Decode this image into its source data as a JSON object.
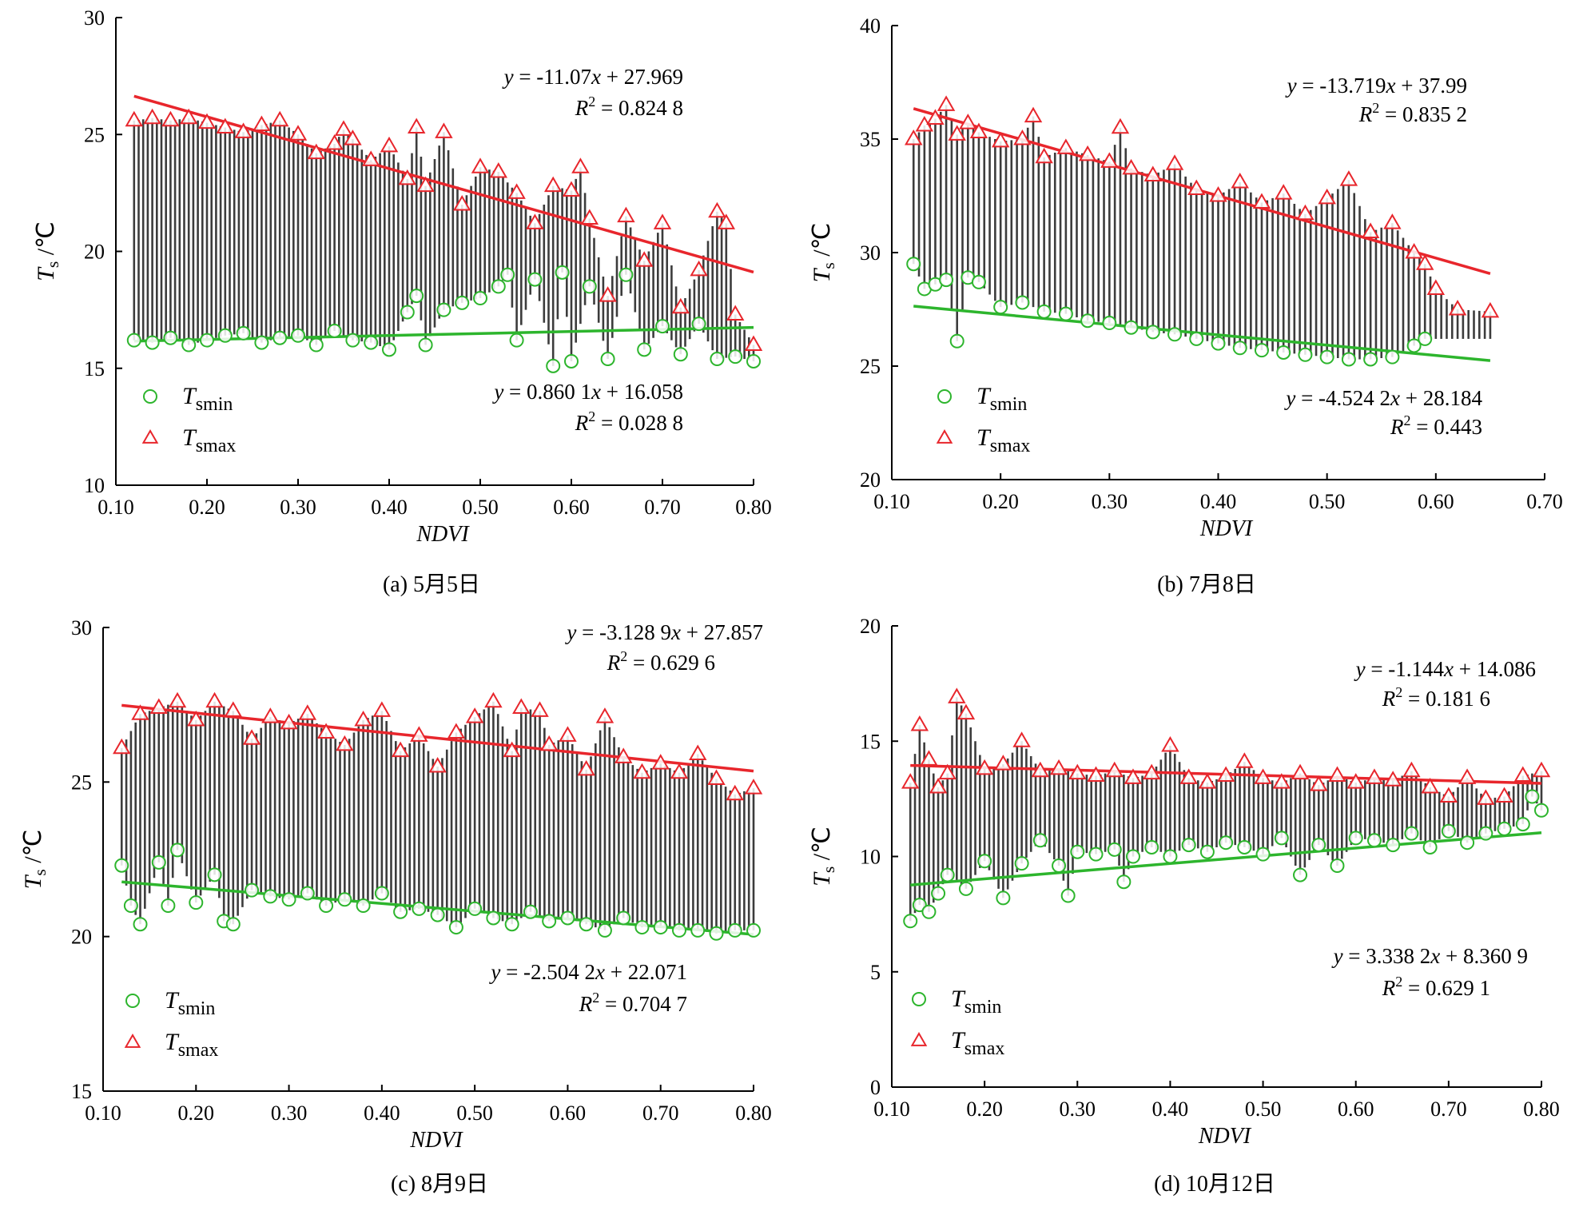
{
  "chart_data": [
    {
      "type": "scatter",
      "caption": "(a) 5月5日",
      "xlabel": "NDVI",
      "ylabel": "T_s /℃",
      "xlim": [
        0.1,
        0.8
      ],
      "ylim": [
        10,
        30
      ],
      "xticks": [
        "0.10",
        "0.20",
        "0.30",
        "0.40",
        "0.50",
        "0.60",
        "0.70",
        "0.80"
      ],
      "yticks": [
        "10",
        "15",
        "20",
        "25",
        "30"
      ],
      "legend": [
        "T_smin",
        "T_smax"
      ],
      "colors": {
        "min": "#2db52d",
        "max": "#e8262c",
        "band": "#1a1a1a"
      },
      "series": [
        {
          "name": "T_smin",
          "fit": {
            "slope": 0.8601,
            "intercept": 16.058,
            "x_range": [
              0.12,
              0.8
            ]
          },
          "equation": "y = 0.860 1x + 16.058",
          "r2": "R² = 0.028 8",
          "x": [
            0.12,
            0.14,
            0.16,
            0.18,
            0.2,
            0.22,
            0.24,
            0.26,
            0.28,
            0.3,
            0.32,
            0.34,
            0.36,
            0.38,
            0.4,
            0.42,
            0.43,
            0.44,
            0.46,
            0.48,
            0.5,
            0.52,
            0.53,
            0.54,
            0.56,
            0.58,
            0.59,
            0.6,
            0.62,
            0.64,
            0.66,
            0.68,
            0.7,
            0.72,
            0.74,
            0.76,
            0.78,
            0.8
          ],
          "y": [
            16.2,
            16.1,
            16.3,
            16.0,
            16.2,
            16.4,
            16.5,
            16.1,
            16.3,
            16.4,
            16.0,
            16.6,
            16.2,
            16.1,
            15.8,
            17.4,
            18.1,
            16.0,
            17.5,
            17.8,
            18.0,
            18.5,
            19.0,
            16.2,
            18.8,
            15.1,
            19.1,
            15.3,
            18.5,
            15.4,
            19.0,
            15.8,
            16.8,
            15.6,
            16.9,
            15.4,
            15.5,
            15.3
          ]
        },
        {
          "name": "T_smax",
          "fit": {
            "slope": -11.07,
            "intercept": 27.969,
            "x_range": [
              0.12,
              0.8
            ]
          },
          "equation": "y = -11.07x + 27.969",
          "r2": "R² = 0.824 8",
          "x": [
            0.12,
            0.14,
            0.16,
            0.18,
            0.2,
            0.22,
            0.24,
            0.26,
            0.28,
            0.3,
            0.32,
            0.34,
            0.35,
            0.36,
            0.38,
            0.4,
            0.42,
            0.43,
            0.44,
            0.46,
            0.48,
            0.5,
            0.52,
            0.54,
            0.56,
            0.58,
            0.6,
            0.61,
            0.62,
            0.64,
            0.66,
            0.68,
            0.7,
            0.72,
            0.74,
            0.76,
            0.77,
            0.78,
            0.8
          ],
          "y": [
            25.6,
            25.7,
            25.6,
            25.7,
            25.5,
            25.3,
            25.1,
            25.4,
            25.6,
            25.0,
            24.2,
            24.6,
            25.2,
            24.8,
            23.9,
            24.5,
            23.1,
            25.3,
            22.8,
            25.1,
            22.0,
            23.6,
            23.4,
            22.5,
            21.2,
            22.8,
            22.6,
            23.6,
            21.4,
            18.1,
            21.5,
            19.6,
            21.2,
            17.6,
            19.2,
            21.7,
            21.2,
            17.3,
            16.0
          ]
        }
      ]
    },
    {
      "type": "scatter",
      "caption": "(b) 7月8日",
      "xlabel": "NDVI",
      "ylabel": "T_s /℃",
      "xlim": [
        0.1,
        0.7
      ],
      "ylim": [
        20,
        40
      ],
      "xticks": [
        "0.10",
        "0.20",
        "0.30",
        "0.40",
        "0.50",
        "0.60",
        "0.70"
      ],
      "yticks": [
        "20",
        "25",
        "30",
        "35",
        "40"
      ],
      "legend": [
        "T_smin",
        "T_smax"
      ],
      "colors": {
        "min": "#2db52d",
        "max": "#e8262c",
        "band": "#1a1a1a"
      },
      "series": [
        {
          "name": "T_smin",
          "fit": {
            "slope": -4.5242,
            "intercept": 28.184,
            "x_range": [
              0.12,
              0.65
            ]
          },
          "equation": "y = -4.524 2x + 28.184",
          "r2": "R² = 0.443",
          "x": [
            0.12,
            0.13,
            0.14,
            0.15,
            0.16,
            0.17,
            0.18,
            0.2,
            0.22,
            0.24,
            0.26,
            0.28,
            0.3,
            0.32,
            0.34,
            0.36,
            0.38,
            0.4,
            0.42,
            0.44,
            0.46,
            0.48,
            0.5,
            0.52,
            0.54,
            0.56,
            0.58,
            0.59
          ],
          "y": [
            29.5,
            28.4,
            28.6,
            28.8,
            26.1,
            28.9,
            28.7,
            27.6,
            27.8,
            27.4,
            27.3,
            27.0,
            26.9,
            26.7,
            26.5,
            26.4,
            26.2,
            26.0,
            25.8,
            25.7,
            25.6,
            25.5,
            25.4,
            25.3,
            25.3,
            25.4,
            25.9,
            26.2
          ]
        },
        {
          "name": "T_smax",
          "fit": {
            "slope": -13.719,
            "intercept": 37.99,
            "x_range": [
              0.12,
              0.65
            ]
          },
          "equation": "y = -13.719x + 37.99",
          "r2": "R² = 0.835 2",
          "x": [
            0.12,
            0.13,
            0.14,
            0.15,
            0.16,
            0.17,
            0.18,
            0.2,
            0.22,
            0.23,
            0.24,
            0.26,
            0.28,
            0.3,
            0.31,
            0.32,
            0.34,
            0.36,
            0.38,
            0.4,
            0.42,
            0.44,
            0.46,
            0.48,
            0.5,
            0.52,
            0.54,
            0.56,
            0.58,
            0.59,
            0.6,
            0.62,
            0.65
          ],
          "y": [
            35.0,
            35.6,
            35.9,
            36.5,
            35.2,
            35.7,
            35.3,
            34.9,
            35.0,
            36.0,
            34.2,
            34.6,
            34.3,
            34.0,
            35.5,
            33.7,
            33.4,
            33.9,
            32.8,
            32.5,
            33.1,
            32.2,
            32.6,
            31.7,
            32.4,
            33.2,
            30.9,
            31.3,
            30.0,
            29.5,
            28.4,
            27.5,
            27.4
          ]
        }
      ]
    },
    {
      "type": "scatter",
      "caption": "(c) 8月9日",
      "xlabel": "NDVI",
      "ylabel": "T_s /℃",
      "xlim": [
        0.1,
        0.8
      ],
      "ylim": [
        15,
        30
      ],
      "xticks": [
        "0.10",
        "0.20",
        "0.30",
        "0.40",
        "0.50",
        "0.60",
        "0.70",
        "0.80"
      ],
      "yticks": [
        "15",
        "20",
        "25",
        "30"
      ],
      "legend": [
        "T_smin",
        "T_smax"
      ],
      "colors": {
        "min": "#2db52d",
        "max": "#e8262c",
        "band": "#1a1a1a"
      },
      "series": [
        {
          "name": "T_smin",
          "fit": {
            "slope": -2.5042,
            "intercept": 22.071,
            "x_range": [
              0.12,
              0.8
            ]
          },
          "equation": "y = -2.504 2x + 22.071",
          "r2": "R² = 0.704 7",
          "x": [
            0.12,
            0.13,
            0.14,
            0.16,
            0.17,
            0.18,
            0.2,
            0.22,
            0.23,
            0.24,
            0.26,
            0.28,
            0.3,
            0.32,
            0.34,
            0.36,
            0.38,
            0.4,
            0.42,
            0.44,
            0.46,
            0.48,
            0.5,
            0.52,
            0.54,
            0.56,
            0.58,
            0.6,
            0.62,
            0.64,
            0.66,
            0.68,
            0.7,
            0.72,
            0.74,
            0.76,
            0.78,
            0.8
          ],
          "y": [
            22.3,
            21.0,
            20.4,
            22.4,
            21.0,
            22.8,
            21.1,
            22.0,
            20.5,
            20.4,
            21.5,
            21.3,
            21.2,
            21.4,
            21.0,
            21.2,
            21.0,
            21.4,
            20.8,
            20.9,
            20.7,
            20.3,
            20.9,
            20.6,
            20.4,
            20.8,
            20.5,
            20.6,
            20.4,
            20.2,
            20.6,
            20.3,
            20.3,
            20.2,
            20.2,
            20.1,
            20.2,
            20.2
          ]
        },
        {
          "name": "T_smax",
          "fit": {
            "slope": -3.1289,
            "intercept": 27.857,
            "x_range": [
              0.12,
              0.8
            ]
          },
          "equation": "y = -3.128 9x + 27.857",
          "r2": "R² = 0.629 6",
          "x": [
            0.12,
            0.14,
            0.16,
            0.18,
            0.2,
            0.22,
            0.24,
            0.26,
            0.28,
            0.3,
            0.32,
            0.34,
            0.36,
            0.38,
            0.4,
            0.42,
            0.44,
            0.46,
            0.48,
            0.5,
            0.52,
            0.54,
            0.55,
            0.57,
            0.58,
            0.6,
            0.62,
            0.64,
            0.66,
            0.68,
            0.7,
            0.72,
            0.74,
            0.76,
            0.78,
            0.8
          ],
          "y": [
            26.1,
            27.2,
            27.4,
            27.6,
            27.0,
            27.6,
            27.3,
            26.4,
            27.1,
            26.9,
            27.2,
            26.6,
            26.2,
            27.0,
            27.3,
            26.0,
            26.5,
            25.5,
            26.6,
            27.1,
            27.6,
            26.0,
            27.4,
            27.3,
            26.2,
            26.5,
            25.4,
            27.1,
            25.8,
            25.3,
            25.6,
            25.3,
            25.9,
            25.1,
            24.6,
            24.8
          ]
        }
      ]
    },
    {
      "type": "scatter",
      "caption": "(d) 10月12日",
      "xlabel": "NDVI",
      "ylabel": "T_s /℃",
      "xlim": [
        0.1,
        0.8
      ],
      "ylim": [
        0,
        20
      ],
      "xticks": [
        "0.10",
        "0.20",
        "0.30",
        "0.40",
        "0.50",
        "0.60",
        "0.70",
        "0.80"
      ],
      "yticks": [
        "0",
        "5",
        "10",
        "15",
        "20"
      ],
      "legend": [
        "T_smin",
        "T_smax"
      ],
      "colors": {
        "min": "#2db52d",
        "max": "#e8262c",
        "band": "#1a1a1a"
      },
      "series": [
        {
          "name": "T_smin",
          "fit": {
            "slope": 3.3382,
            "intercept": 8.3609,
            "x_range": [
              0.12,
              0.8
            ]
          },
          "equation": "y = 3.338 2x + 8.360 9",
          "r2": "R² = 0.629 1",
          "x": [
            0.12,
            0.13,
            0.14,
            0.15,
            0.16,
            0.18,
            0.2,
            0.22,
            0.24,
            0.26,
            0.28,
            0.29,
            0.3,
            0.32,
            0.34,
            0.35,
            0.36,
            0.38,
            0.4,
            0.42,
            0.44,
            0.46,
            0.48,
            0.5,
            0.52,
            0.54,
            0.56,
            0.58,
            0.6,
            0.62,
            0.64,
            0.66,
            0.68,
            0.7,
            0.72,
            0.74,
            0.76,
            0.78,
            0.79,
            0.8
          ],
          "y": [
            7.2,
            7.9,
            7.6,
            8.4,
            9.2,
            8.6,
            9.8,
            8.2,
            9.7,
            10.7,
            9.6,
            8.3,
            10.2,
            10.1,
            10.3,
            8.9,
            10.0,
            10.4,
            10.0,
            10.5,
            10.2,
            10.6,
            10.4,
            10.1,
            10.8,
            9.2,
            10.5,
            9.6,
            10.8,
            10.7,
            10.5,
            11.0,
            10.4,
            11.1,
            10.6,
            11.0,
            11.2,
            11.4,
            12.6,
            12.0
          ]
        },
        {
          "name": "T_smax",
          "fit": {
            "slope": -1.144,
            "intercept": 14.086,
            "x_range": [
              0.12,
              0.8
            ]
          },
          "equation": "y = -1.144x + 14.086",
          "r2": "R² = 0.181 6",
          "x": [
            0.12,
            0.13,
            0.14,
            0.15,
            0.16,
            0.17,
            0.18,
            0.2,
            0.22,
            0.24,
            0.26,
            0.28,
            0.3,
            0.32,
            0.34,
            0.36,
            0.38,
            0.4,
            0.42,
            0.44,
            0.46,
            0.48,
            0.5,
            0.52,
            0.54,
            0.56,
            0.58,
            0.6,
            0.62,
            0.64,
            0.66,
            0.68,
            0.7,
            0.72,
            0.74,
            0.76,
            0.78,
            0.8
          ],
          "y": [
            13.2,
            15.7,
            14.2,
            13.0,
            13.6,
            16.9,
            16.2,
            13.8,
            14.0,
            15.0,
            13.7,
            13.8,
            13.6,
            13.5,
            13.7,
            13.4,
            13.6,
            14.8,
            13.4,
            13.2,
            13.5,
            14.1,
            13.4,
            13.2,
            13.6,
            13.1,
            13.5,
            13.2,
            13.4,
            13.3,
            13.7,
            13.0,
            12.6,
            13.4,
            12.5,
            12.6,
            13.5,
            13.7
          ]
        }
      ]
    }
  ]
}
